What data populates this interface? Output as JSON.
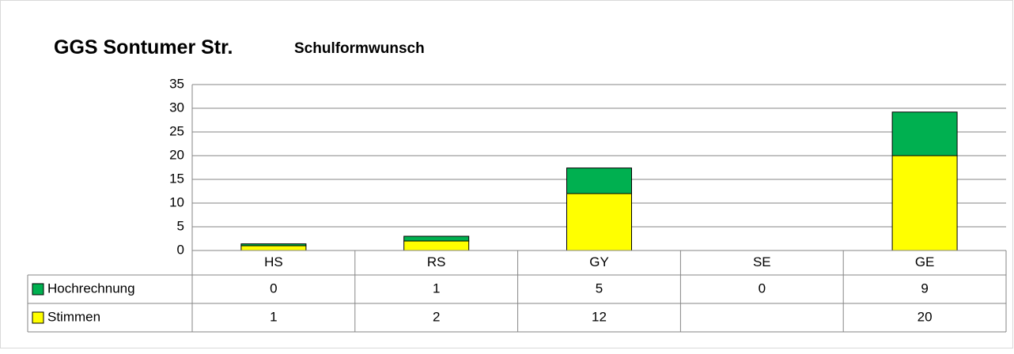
{
  "chart_data": {
    "type": "bar",
    "stacked": true,
    "title": "GGS Sontumer Str.",
    "subtitle": "Schulformwunsch",
    "categories": [
      "HS",
      "RS",
      "GY",
      "SE",
      "GE"
    ],
    "series": [
      {
        "name": "Hochrechnung",
        "color": "#00b050",
        "values": [
          0.4,
          1,
          5.4,
          0,
          9.2
        ],
        "value_labels": [
          "0",
          "1",
          "5",
          "0",
          "9"
        ]
      },
      {
        "name": "Stimmen",
        "color": "#ffff00",
        "values": [
          1,
          2,
          12,
          null,
          20
        ]
      }
    ],
    "ylim": [
      0,
      35
    ],
    "yticks": [
      0,
      5,
      10,
      15,
      20,
      25,
      30,
      35
    ],
    "grid": true,
    "data_table": true
  }
}
